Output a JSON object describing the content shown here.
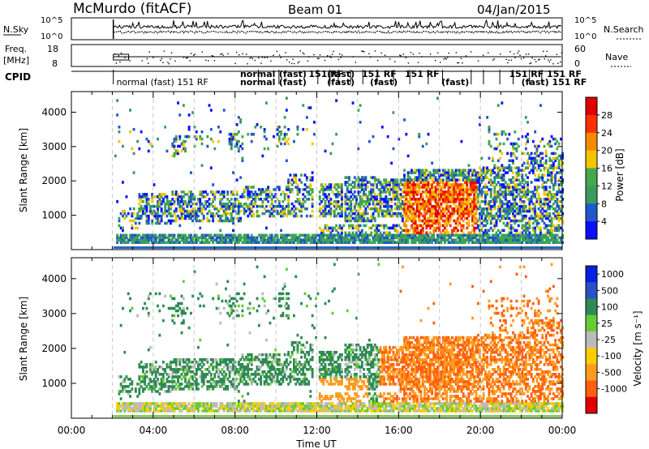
{
  "header": {
    "station": "McMurdo (fitACF)",
    "beam": "Beam 01",
    "date": "04/Jan/2015"
  },
  "strip_labels": {
    "nsky": "N.Sky",
    "nsearch": "N.Search",
    "freq_line1": "Freq.",
    "freq_line2": "[MHz]",
    "nave": "Nave",
    "cpid": "CPID",
    "nsky_ticks": [
      "10^5",
      "10^0"
    ],
    "nsearch_ticks": [
      "10^5",
      "10^0"
    ],
    "freq_ticks": [
      "18",
      "8"
    ],
    "nave_ticks": [
      "60",
      "0"
    ]
  },
  "cpid_segments": [
    {
      "text": "normal (fast) 151 RF",
      "row": 1
    },
    {
      "text": "normal",
      "row": 0
    },
    {
      "text": "normal",
      "row": 1
    },
    {
      "text": "(fast)",
      "row": 0
    },
    {
      "text": "(fast)",
      "row": 1
    },
    {
      "text": "151 RF",
      "row": 0
    },
    {
      "text": "(fast)",
      "row": 0
    },
    {
      "text": "(fast)",
      "row": 1
    },
    {
      "text": "151 RF",
      "row": 0
    },
    {
      "text": "(fast)",
      "row": 1
    },
    {
      "text": "151 RF",
      "row": 0
    },
    {
      "text": "(fast)",
      "row": 1
    },
    {
      "text": "151 RF 151 RF",
      "row": 0
    },
    {
      "text": "(fast) 151 RF",
      "row": 1
    }
  ],
  "chart_data": [
    {
      "type": "heatmap",
      "name": "power",
      "ylabel": "Slant Range [km]",
      "yticks": [
        "1000",
        "2000",
        "3000",
        "4000"
      ],
      "ylim": [
        0,
        4600
      ],
      "xlim": [
        0,
        24
      ],
      "colorbar_label": "Power [dB]",
      "colorbar_ticks": [
        "4",
        "8",
        "12",
        "16",
        "20",
        "24",
        "28"
      ],
      "colorbar_colors": [
        "#0a10ff",
        "#2157c8",
        "#3a9b5e",
        "#40aa4c",
        "#f5c400",
        "#f58a00",
        "#ff3000",
        "#e00000"
      ]
    },
    {
      "type": "heatmap",
      "name": "velocity",
      "ylabel": "Slant Range [km]",
      "yticks": [
        "1000",
        "2000",
        "3000",
        "4000"
      ],
      "ylim": [
        0,
        4600
      ],
      "xlim": [
        0,
        24
      ],
      "xlabel": "Time UT",
      "xticks": [
        "00:00",
        "04:00",
        "08:00",
        "12:00",
        "16:00",
        "20:00",
        "00:00"
      ],
      "colorbar_label": "Velocity [m s⁻¹]",
      "colorbar_ticks": [
        "1000",
        "500",
        "100",
        "25",
        "-25",
        "-100",
        "-500",
        "-1000"
      ],
      "colorbar_colors": [
        "#0a20e0",
        "#2a50c8",
        "#2e8a55",
        "#66cc33",
        "#bbbbbb",
        "#ffcc00",
        "#ff9b20",
        "#ff6010",
        "#e00000"
      ]
    }
  ]
}
